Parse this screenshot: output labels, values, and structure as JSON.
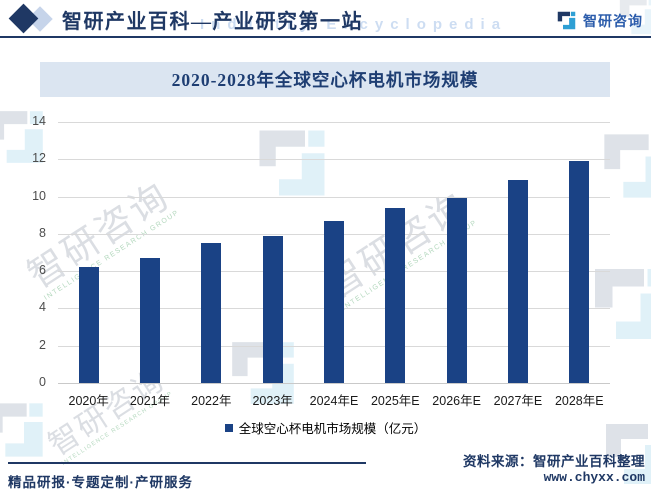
{
  "header": {
    "title": "智研产业百科—产业研究第一站",
    "subtitle_watermark": "Industry Encyclopedia",
    "logo_text": "智研咨询"
  },
  "chart_data": {
    "type": "bar",
    "title": "2020-2028年全球空心杯电机市场规模",
    "categories": [
      "2020年",
      "2021年",
      "2022年",
      "2023年",
      "2024年E",
      "2025年E",
      "2026年E",
      "2027年E",
      "2028年E"
    ],
    "values": [
      6.2,
      6.7,
      7.5,
      7.9,
      8.7,
      9.4,
      9.9,
      10.9,
      11.9
    ],
    "unit": "亿元",
    "legend": [
      "全球空心杯电机市场规模（亿元）"
    ],
    "ylim": [
      0,
      14
    ],
    "ytick_step": 2,
    "grid": true,
    "legend_position": "bottom",
    "bar_color": "#1a4285"
  },
  "footer": {
    "services_text": "精品研报·专题定制·产研服务",
    "source_label": "资料来源：智研产业百科整理",
    "website": "www.chyxx.com"
  },
  "watermark": {
    "cn": "智研咨询",
    "en": "INTELLIGENCE RESEARCH GROUP"
  },
  "colors": {
    "navy": "#1f3864",
    "bar": "#1a4285",
    "title_band_bg": "#dbe5f1",
    "gridline": "#d9d9d9",
    "logo_teal": "#2e9fd4"
  }
}
